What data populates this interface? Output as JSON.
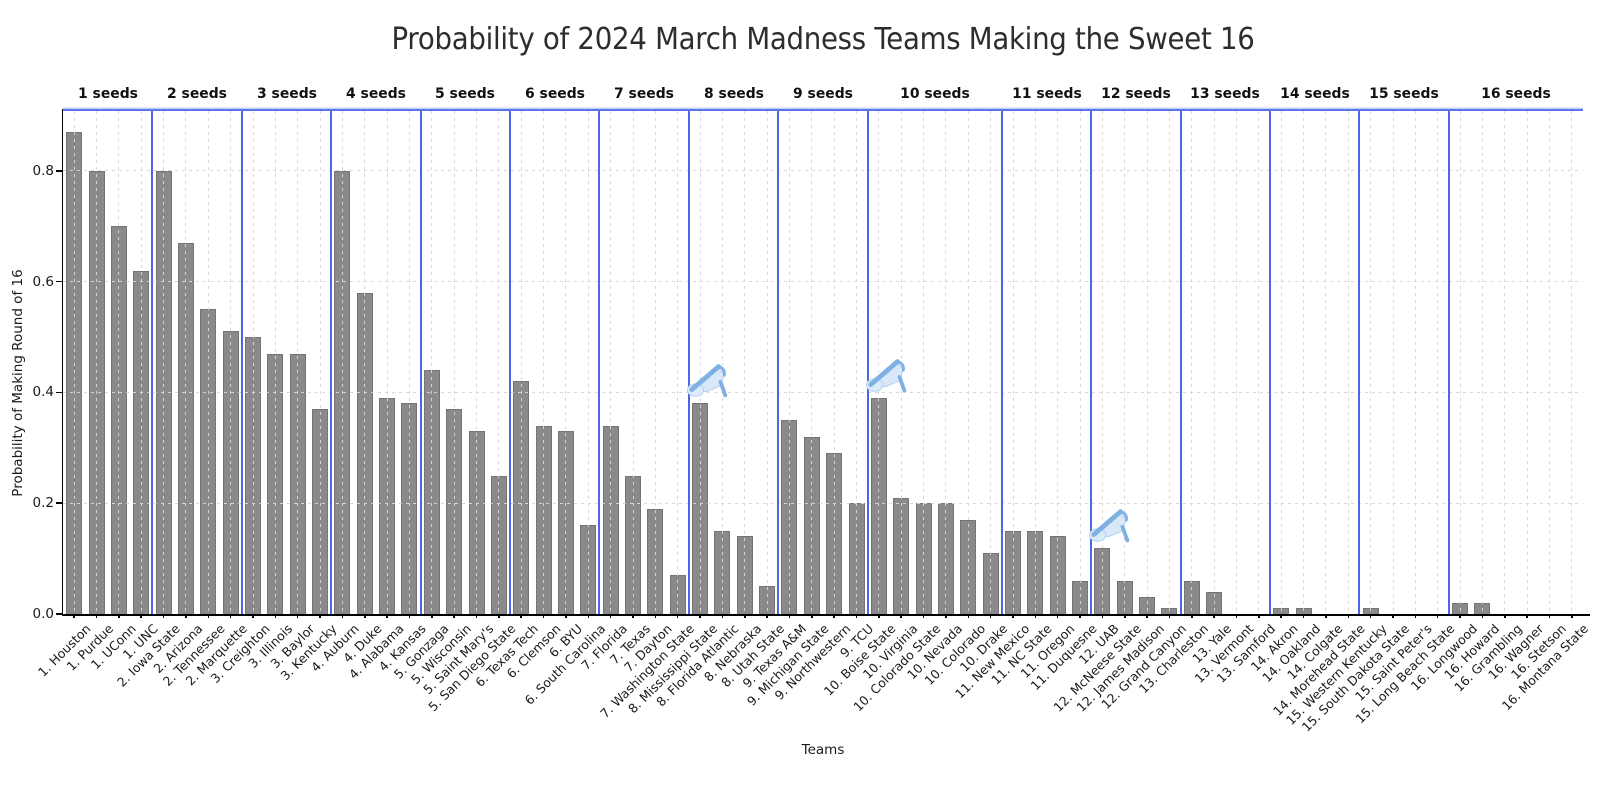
{
  "page_title": "Probability of 2024 March Madness Teams Making the Sweet 16",
  "x_axis_title": "Teams",
  "y_axis_title": "Probability of Making Round of 16",
  "chart_data": {
    "type": "bar",
    "title": "Probability of 2024 March Madness Teams Making the Sweet 16",
    "xlabel": "Teams",
    "ylabel": "Probability of Making Round of 16",
    "ylim": [
      0,
      0.908
    ],
    "yticks": [
      0.0,
      0.2,
      0.4,
      0.6,
      0.8
    ],
    "grid": true,
    "legend": "none",
    "colors": {
      "bar": "#8a8a8a",
      "bar_edge": "#747474",
      "seed_divider_blue": "#4a67e6",
      "top_border_blue": "#5b76e8",
      "gridline": "#d6d6d6",
      "axis": "#000000",
      "slipper_blue": "#7fb0e2",
      "slipper_light_blue": "#d9e8f9"
    },
    "cinderella_slipper_note": "glass-slipper icon marks Cinderella picks",
    "groups": [
      {
        "label": "1 seeds",
        "teams": [
          {
            "name": "1. Houston",
            "value": 0.87
          },
          {
            "name": "1. Purdue",
            "value": 0.8
          },
          {
            "name": "1. UConn",
            "value": 0.7
          },
          {
            "name": "1. UNC",
            "value": 0.62
          }
        ]
      },
      {
        "label": "2 seeds",
        "teams": [
          {
            "name": "2. Iowa State",
            "value": 0.8
          },
          {
            "name": "2. Arizona",
            "value": 0.67
          },
          {
            "name": "2. Tennessee",
            "value": 0.55
          },
          {
            "name": "2. Marquette",
            "value": 0.51
          }
        ]
      },
      {
        "label": "3 seeds",
        "teams": [
          {
            "name": "3. Creighton",
            "value": 0.5
          },
          {
            "name": "3. Illinois",
            "value": 0.47
          },
          {
            "name": "3. Baylor",
            "value": 0.47
          },
          {
            "name": "3. Kentucky",
            "value": 0.37
          }
        ]
      },
      {
        "label": "4 seeds",
        "teams": [
          {
            "name": "4. Auburn",
            "value": 0.8
          },
          {
            "name": "4. Duke",
            "value": 0.58
          },
          {
            "name": "4. Alabama",
            "value": 0.39
          },
          {
            "name": "4. Kansas",
            "value": 0.38
          }
        ]
      },
      {
        "label": "5 seeds",
        "teams": [
          {
            "name": "5. Gonzaga",
            "value": 0.44
          },
          {
            "name": "5. Wisconsin",
            "value": 0.37
          },
          {
            "name": "5. Saint Mary's",
            "value": 0.33
          },
          {
            "name": "5. San Diego State",
            "value": 0.25
          }
        ]
      },
      {
        "label": "6 seeds",
        "teams": [
          {
            "name": "6. Texas Tech",
            "value": 0.42
          },
          {
            "name": "6. Clemson",
            "value": 0.34
          },
          {
            "name": "6. BYU",
            "value": 0.33
          },
          {
            "name": "6. South Carolina",
            "value": 0.16
          }
        ]
      },
      {
        "label": "7 seeds",
        "teams": [
          {
            "name": "7. Florida",
            "value": 0.34
          },
          {
            "name": "7. Texas",
            "value": 0.25
          },
          {
            "name": "7. Dayton",
            "value": 0.19
          },
          {
            "name": "7. Washington State",
            "value": 0.07
          }
        ]
      },
      {
        "label": "8 seeds",
        "teams": [
          {
            "name": "8. Mississippi State",
            "value": 0.38,
            "slipper": true
          },
          {
            "name": "8. Florida Atlantic",
            "value": 0.15
          },
          {
            "name": "8. Nebraska",
            "value": 0.14
          },
          {
            "name": "8. Utah State",
            "value": 0.05
          }
        ]
      },
      {
        "label": "9 seeds",
        "teams": [
          {
            "name": "9. Texas A&M",
            "value": 0.35
          },
          {
            "name": "9. Michigan State",
            "value": 0.32
          },
          {
            "name": "9. Northwestern",
            "value": 0.29
          },
          {
            "name": "9. TCU",
            "value": 0.2
          }
        ]
      },
      {
        "label": "10 seeds",
        "teams": [
          {
            "name": "10. Boise State",
            "value": 0.39,
            "slipper": true
          },
          {
            "name": "10. Virginia",
            "value": 0.21
          },
          {
            "name": "10. Colorado State",
            "value": 0.2
          },
          {
            "name": "10. Nevada",
            "value": 0.2
          },
          {
            "name": "10. Colorado",
            "value": 0.17
          },
          {
            "name": "10. Drake",
            "value": 0.11
          }
        ]
      },
      {
        "label": "11 seeds",
        "teams": [
          {
            "name": "11. New Mexico",
            "value": 0.15
          },
          {
            "name": "11. NC State",
            "value": 0.15
          },
          {
            "name": "11. Oregon",
            "value": 0.14
          },
          {
            "name": "11. Duquesne",
            "value": 0.06
          }
        ]
      },
      {
        "label": "12 seeds",
        "teams": [
          {
            "name": "12. UAB",
            "value": 0.12,
            "slipper": true
          },
          {
            "name": "12. McNeese State",
            "value": 0.06
          },
          {
            "name": "12. James Madison",
            "value": 0.03
          },
          {
            "name": "12. Grand Canyon",
            "value": 0.01
          }
        ]
      },
      {
        "label": "13 seeds",
        "teams": [
          {
            "name": "13. Charleston",
            "value": 0.06
          },
          {
            "name": "13. Yale",
            "value": 0.04
          },
          {
            "name": "13. Vermont",
            "value": 0.0
          },
          {
            "name": "13. Samford",
            "value": 0.0
          }
        ]
      },
      {
        "label": "14 seeds",
        "teams": [
          {
            "name": "14. Akron",
            "value": 0.01
          },
          {
            "name": "14. Oakland",
            "value": 0.01
          },
          {
            "name": "14. Colgate",
            "value": 0.0
          },
          {
            "name": "14. Morehead State",
            "value": 0.0
          }
        ]
      },
      {
        "label": "15 seeds",
        "teams": [
          {
            "name": "15. Western Kentucky",
            "value": 0.01
          },
          {
            "name": "15. South Dakota State",
            "value": 0.0
          },
          {
            "name": "15. Saint Peter's",
            "value": 0.0
          },
          {
            "name": "15. Long Beach State",
            "value": 0.0
          }
        ]
      },
      {
        "label": "16 seeds",
        "teams": [
          {
            "name": "16. Longwood",
            "value": 0.02
          },
          {
            "name": "16. Howard",
            "value": 0.02
          },
          {
            "name": "16. Grambling",
            "value": 0.0
          },
          {
            "name": "16. Wagner",
            "value": 0.0
          },
          {
            "name": "16. Stetson",
            "value": 0.0
          },
          {
            "name": "16. Montana State",
            "value": 0.0
          }
        ]
      }
    ]
  }
}
